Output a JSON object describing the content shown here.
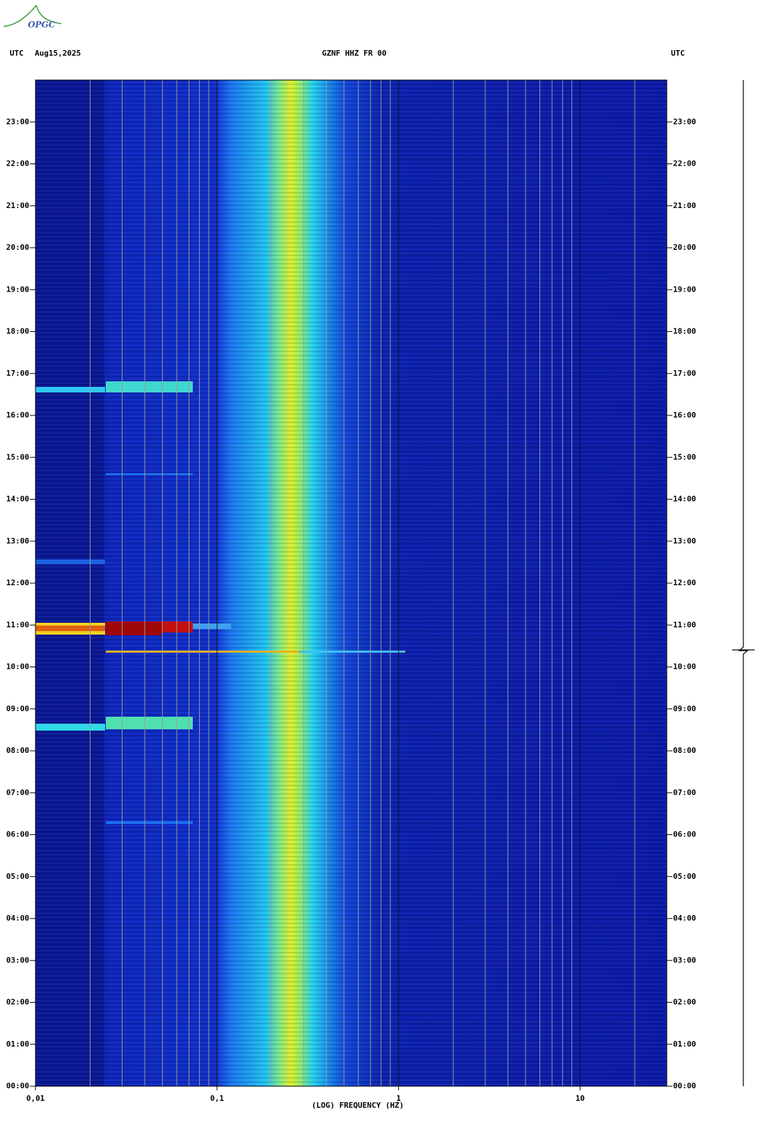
{
  "logo": "OPGC",
  "chart_data": {
    "type": "spectrogram",
    "header_left_zone": "UTC",
    "header_date": "Aug15,2025",
    "title": "GZNF HHZ FR 00",
    "header_right_zone": "UTC",
    "x_label": "(LOG) FREQUENCY (HZ)",
    "x_log": true,
    "xlim": [
      0.01,
      30
    ],
    "xticks": [
      {
        "value": 0.01,
        "label": "0,01"
      },
      {
        "value": 0.1,
        "label": "0,1"
      },
      1,
      10
    ],
    "xminorticks": [
      0.02,
      0.03,
      0.04,
      0.05,
      0.06,
      0.07,
      0.08,
      0.09,
      0.2,
      0.3,
      0.4,
      0.5,
      0.6,
      0.7,
      0.8,
      0.9,
      2,
      3,
      4,
      5,
      6,
      7,
      8,
      9,
      20
    ],
    "ylim": [
      0,
      24
    ],
    "yticks": [
      {
        "value": 0,
        "label": "00:00"
      },
      {
        "value": 1,
        "label": "01:00"
      },
      {
        "value": 2,
        "label": "02:00"
      },
      {
        "value": 3,
        "label": "03:00"
      },
      {
        "value": 4,
        "label": "04:00"
      },
      {
        "value": 5,
        "label": "05:00"
      },
      {
        "value": 6,
        "label": "06:00"
      },
      {
        "value": 7,
        "label": "07:00"
      },
      {
        "value": 8,
        "label": "08:00"
      },
      {
        "value": 9,
        "label": "09:00"
      },
      {
        "value": 10,
        "label": "10:00"
      },
      {
        "value": 11,
        "label": "11:00"
      },
      {
        "value": 12,
        "label": "12:00"
      },
      {
        "value": 13,
        "label": "13:00"
      },
      {
        "value": 14,
        "label": "14:00"
      },
      {
        "value": 15,
        "label": "15:00"
      },
      {
        "value": 16,
        "label": "16:00"
      },
      {
        "value": 17,
        "label": "17:00"
      },
      {
        "value": 18,
        "label": "18:00"
      },
      {
        "value": 19,
        "label": "19:00"
      },
      {
        "value": 20,
        "label": "20:00"
      },
      {
        "value": 21,
        "label": "21:00"
      },
      {
        "value": 22,
        "label": "22:00"
      },
      {
        "value": 23,
        "label": "23:00"
      }
    ],
    "grid": true
  }
}
